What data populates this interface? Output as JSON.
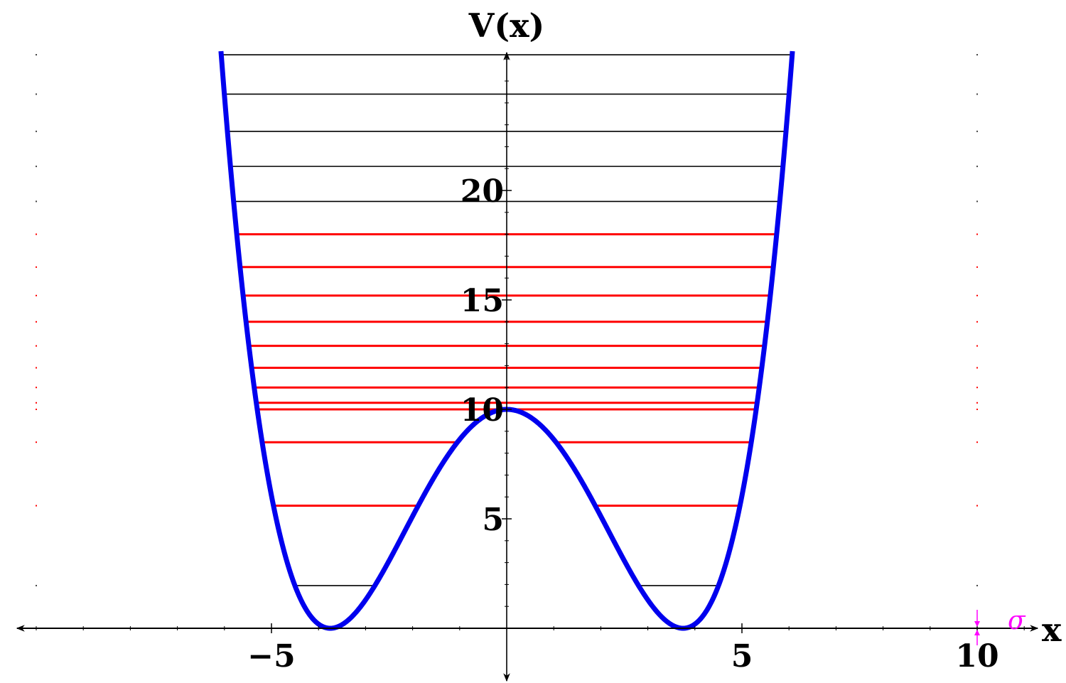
{
  "chart_data": {
    "type": "line",
    "title": "",
    "xlabel": "x",
    "ylabel": "V(x)",
    "xlim": [
      -10.5,
      11.2
    ],
    "ylim": [
      -2.5,
      26.2
    ],
    "x_ticks": [
      -5,
      5,
      10
    ],
    "x_tick_labels": [
      "−5",
      "5",
      "10"
    ],
    "y_ticks": [
      5,
      10,
      15,
      20
    ],
    "y_tick_labels": [
      "5",
      "10",
      "15",
      "20"
    ],
    "grid": false,
    "legend": "none",
    "potential": {
      "type": "double-well",
      "formula": "V(x) = 10 * (x^2/14.06 - 1)^2",
      "barrier_height": 10,
      "minima_x": [
        -3.75,
        3.75
      ],
      "color": "#0000ee"
    },
    "energy_levels": {
      "red": [
        5.6,
        8.5,
        10.0,
        10.3,
        11.0,
        11.9,
        12.9,
        14.0,
        15.2,
        16.5,
        18.0
      ],
      "black": [
        1.95,
        19.5,
        21.1,
        22.7,
        24.4,
        26.2
      ],
      "red_color": "#ff0000",
      "black_color": "#000000"
    },
    "annotation": {
      "label": "σ",
      "x": 10,
      "color": "#ff00ff"
    }
  }
}
